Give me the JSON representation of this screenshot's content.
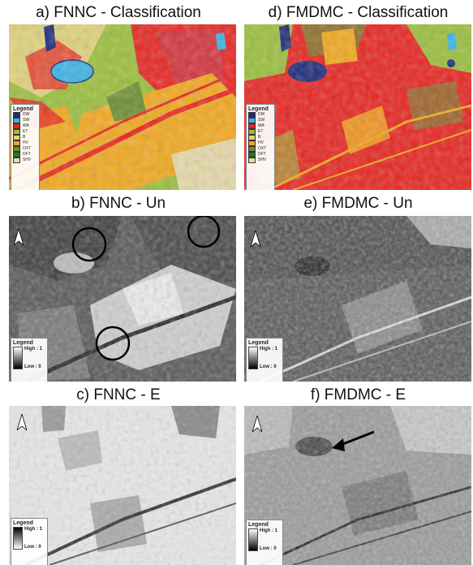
{
  "panels": [
    {
      "id": "a",
      "title": "a) FNNC - Classification",
      "type": "classification"
    },
    {
      "id": "d",
      "title": "d) FMDMC - Classification",
      "type": "classification"
    },
    {
      "id": "b",
      "title": "b) FNNC - Un",
      "type": "uncertainty"
    },
    {
      "id": "e",
      "title": "e) FMDMC - Un",
      "type": "uncertainty"
    },
    {
      "id": "c",
      "title": "c) FNNC - E",
      "type": "entropy"
    },
    {
      "id": "f",
      "title": "f) FMDMC - E",
      "type": "entropy"
    }
  ],
  "legend": {
    "title": "Legend",
    "classes": [
      {
        "label": "DW",
        "color": "#1b2a7a"
      },
      {
        "label": "SW",
        "color": "#39b4e6"
      },
      {
        "label": "WA",
        "color": "#e8231f"
      },
      {
        "label": "ET",
        "color": "#9bbf3b"
      },
      {
        "label": "B",
        "color": "#e0d27a"
      },
      {
        "label": "HV",
        "color": "#f2a81d"
      },
      {
        "label": "OXT",
        "color": "#6b8e2e"
      },
      {
        "label": "DFT",
        "color": "#1f7a2a"
      },
      {
        "label": "SHV",
        "color": "#e6d9a8"
      }
    ],
    "high": "High : 1",
    "low": "Low : 0"
  }
}
